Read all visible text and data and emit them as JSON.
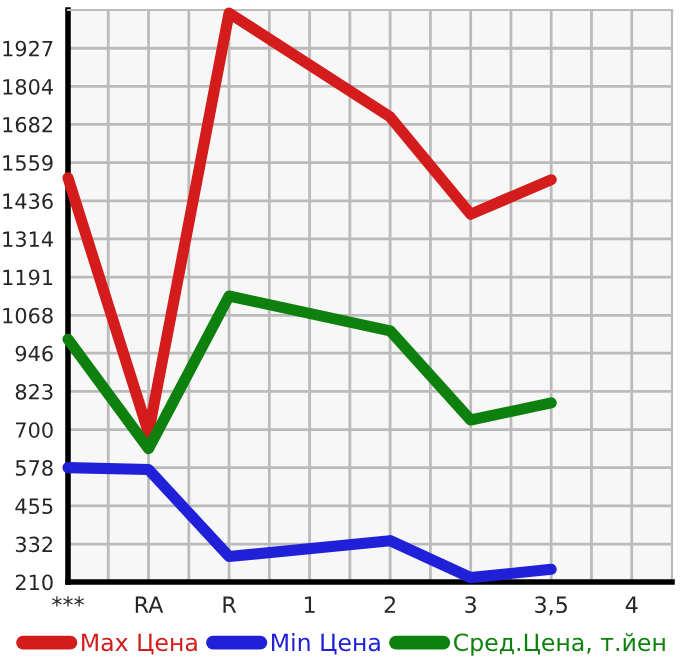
{
  "chart_data": {
    "type": "line",
    "categories": [
      "***",
      "RA",
      "R",
      "1",
      "2",
      "3",
      "3,5",
      "4"
    ],
    "series": [
      {
        "name": "Max Цена",
        "color": "#d41c1c",
        "values": [
          1510,
          690,
          2040,
          null,
          1706,
          1393,
          1504,
          null
        ]
      },
      {
        "name": "Min Цена",
        "color": "#2020d8",
        "values": [
          578,
          572,
          292,
          null,
          343,
          224,
          251,
          null
        ]
      },
      {
        "name": "Сред.Цена, т.йен",
        "color": "#0e800e",
        "values": [
          991,
          639,
          1130,
          null,
          1018,
          731,
          786,
          null
        ]
      }
    ],
    "ylim": [
      210,
      2050
    ],
    "yticks": [
      210,
      332,
      455,
      578,
      700,
      823,
      946,
      1068,
      1191,
      1314,
      1436,
      1559,
      1682,
      1804,
      1927
    ],
    "grid": true,
    "legend": "bottom",
    "marker": "none",
    "line_style": "solid"
  }
}
